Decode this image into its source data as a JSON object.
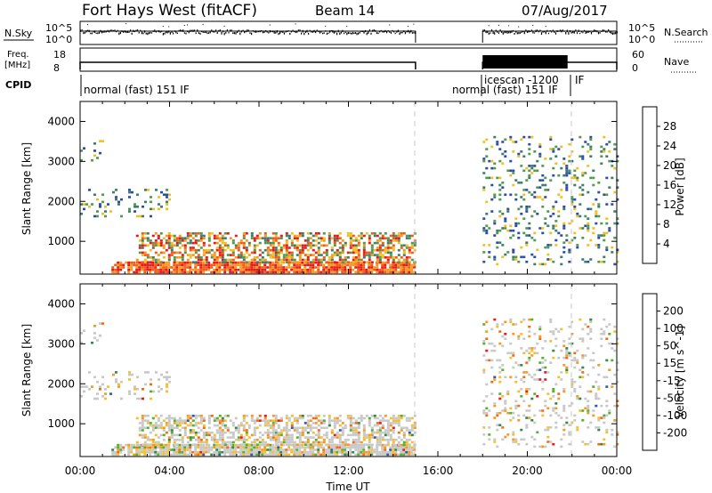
{
  "header": {
    "station": "Fort Hays West (fitACF)",
    "beam": "Beam 14",
    "date": "07/Aug/2017"
  },
  "left_labels": {
    "nsky": "N.Sky",
    "freq_top": "Freq.",
    "freq_unit": "[MHz]",
    "cpid": "CPID"
  },
  "right_labels": {
    "nsearch": "N.Search",
    "nave": "Nave"
  },
  "mini_axes": {
    "nsky_ticks": [
      "10^5",
      "10^0"
    ],
    "nsearch_ticks": [
      "10^5",
      "10^0"
    ],
    "freq_ticks": [
      "18",
      "8"
    ],
    "nave_ticks": [
      "60",
      "0"
    ]
  },
  "cpid": {
    "segments": [
      "normal (fast) 151 IF",
      "normal (fast) 151 IF",
      "icescan -1200",
      "IF"
    ]
  },
  "colors": {
    "power": [
      "#1a1aff",
      "#2b4ca8",
      "#3d7d6b",
      "#4f9a4f",
      "#f0c020",
      "#f59a20",
      "#f25a18",
      "#e8191a"
    ],
    "velocity": [
      "#e8191a",
      "#f56a10",
      "#f59a20",
      "#f5be2a",
      "#c8c8c8",
      "#55b030",
      "#2f8a45",
      "#2f5aa8",
      "#1a2aa0"
    ]
  },
  "chart_data": [
    {
      "type": "heatmap",
      "panel": "power",
      "ylabel": "Slant Range [km]",
      "yticks": [
        "1000",
        "2000",
        "3000",
        "4000"
      ],
      "ylim": [
        180,
        4500
      ],
      "x_unit": "hours UT",
      "xlim": [
        0,
        24
      ],
      "colorbar_label": "Power [dB]",
      "colorbar_ticks": [
        "4",
        "8",
        "12",
        "16",
        "20",
        "24",
        "28"
      ],
      "colorbar_range": [
        0,
        32
      ],
      "data_gap_hours": [
        15.0,
        18.0
      ],
      "scatter_regions": [
        {
          "t_start": 1.4,
          "t_end": 15.0,
          "r_low": 200,
          "r_high": 450,
          "level": "high"
        },
        {
          "t_start": 2.5,
          "t_end": 15.0,
          "r_low": 450,
          "r_high": 1200,
          "level": "mid"
        },
        {
          "t_start": 0.0,
          "t_end": 4.0,
          "r_low": 1600,
          "r_high": 2300,
          "level": "low"
        },
        {
          "t_start": 0.0,
          "t_end": 1.0,
          "r_low": 3000,
          "r_high": 3600,
          "level": "low"
        },
        {
          "t_start": 18.0,
          "t_end": 24.0,
          "r_low": 400,
          "r_high": 3600,
          "level": "low"
        }
      ]
    },
    {
      "type": "heatmap",
      "panel": "velocity",
      "ylabel": "Slant Range [km]",
      "yticks": [
        "1000",
        "2000",
        "3000",
        "4000"
      ],
      "ylim": [
        180,
        4500
      ],
      "x_unit": "hours UT",
      "xlim": [
        0,
        24
      ],
      "xlabel": "Time UT",
      "xticks": [
        "00:00",
        "04:00",
        "08:00",
        "12:00",
        "16:00",
        "20:00",
        "00:00"
      ],
      "colorbar_label": "Velocity [m s^-1]",
      "colorbar_ticks": [
        "200",
        "100",
        "50",
        "15",
        "-15",
        "-50",
        "-100",
        "-200"
      ],
      "colorbar_range": [
        -250,
        250
      ],
      "data_gap_hours": [
        15.0,
        18.0
      ]
    }
  ]
}
